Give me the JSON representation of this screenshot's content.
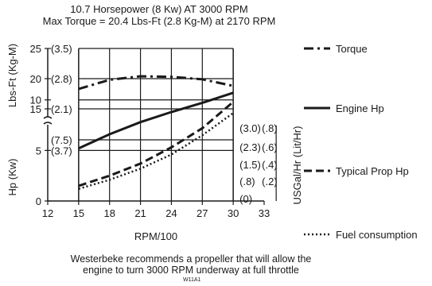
{
  "header": {
    "line1": "10.7 Horsepower (8 Kw) AT 3000 RPM",
    "line2": "Max Torque = 20.4 Lbs-Ft (2.8 Kg-M) at 2170 RPM"
  },
  "footer": {
    "line1": "Westerbeke recommends a propeller that will allow the",
    "line2": "engine to turn 3000 RPM underway at full throttle",
    "code": "W11A1"
  },
  "chart_data": {
    "type": "line",
    "xlabel": "RPM/100",
    "x_ticks": [
      "12",
      "15",
      "18",
      "21",
      "24",
      "27",
      "30",
      "33"
    ],
    "xlim": [
      12,
      33
    ],
    "upper_axis": {
      "label": "Lbs-Ft (Kg-M)",
      "ticks": [
        "15",
        "20",
        "25"
      ],
      "paren_ticks": [
        "(2.1)",
        "(2.8)",
        "(3.5)"
      ],
      "ylim": [
        15,
        25
      ]
    },
    "lower_axis": {
      "label": "Hp (Kw)",
      "ticks": [
        "0",
        "5",
        "10"
      ],
      "paren_ticks": [
        "(3.7)",
        "(7.5)"
      ],
      "ylim": [
        0,
        11
      ]
    },
    "right_axis": {
      "label": "USGal/Hr (Lit/Hr)",
      "gal_ticks": [
        "(3.0)",
        "(2.3)",
        "(1.5)",
        "(.8)",
        "(0)"
      ],
      "lit_ticks": [
        "(.8)",
        "(.6)",
        "(.4)",
        "(.2)"
      ]
    },
    "series": [
      {
        "name": "Torque",
        "axis": "upper",
        "style": "dashdot",
        "x": [
          15,
          18,
          21,
          24,
          27,
          30
        ],
        "y": [
          18.3,
          19.8,
          20.4,
          20.3,
          19.9,
          18.8
        ]
      },
      {
        "name": "Engine Hp",
        "axis": "lower",
        "style": "solid",
        "x": [
          15,
          18,
          21,
          24,
          27,
          30
        ],
        "y": [
          5.2,
          6.6,
          7.8,
          8.8,
          9.7,
          10.7
        ]
      },
      {
        "name": "Typical Prop Hp",
        "axis": "lower",
        "style": "dashed",
        "x": [
          15,
          18,
          21,
          24,
          27,
          30
        ],
        "y": [
          1.5,
          2.5,
          3.7,
          5.3,
          7.2,
          9.8
        ]
      },
      {
        "name": "Fuel consumption",
        "axis": "lower",
        "style": "dotted",
        "x": [
          15,
          18,
          21,
          24,
          27,
          30
        ],
        "y": [
          1.2,
          2.1,
          3.2,
          4.6,
          6.5,
          8.7
        ]
      }
    ],
    "grid": true,
    "legend_position": "right"
  }
}
